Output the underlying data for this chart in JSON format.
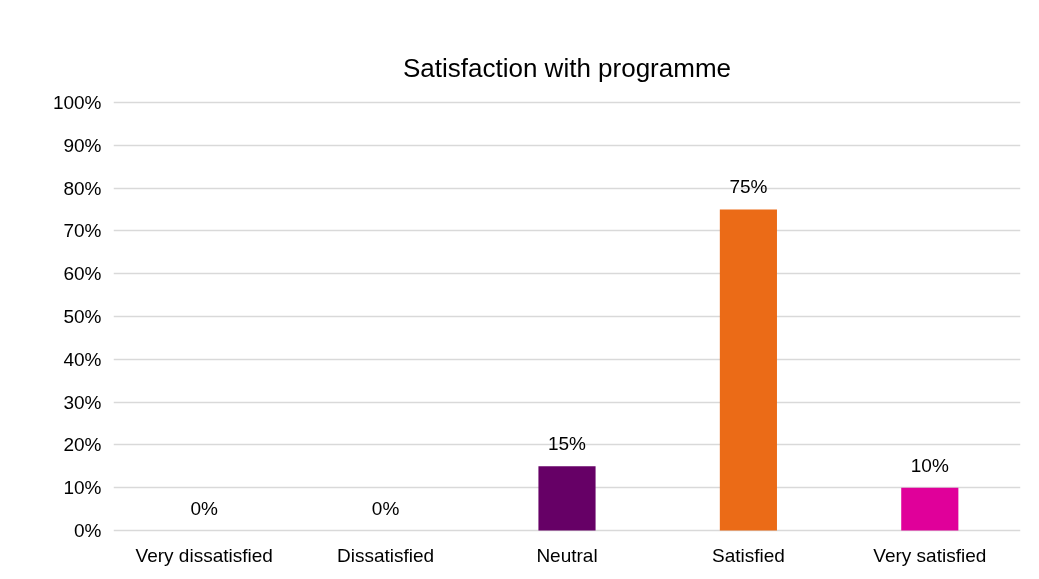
{
  "chart_data": {
    "type": "bar",
    "title": "Satisfaction with programme",
    "categories": [
      "Very dissatisfied",
      "Dissatisfied",
      "Neutral",
      "Satisfied",
      "Very satisfied"
    ],
    "values": [
      0,
      0,
      15,
      75,
      10
    ],
    "colors": [
      null,
      null,
      "#660066",
      "#eb6b17",
      "#e0009a"
    ],
    "value_labels": [
      "0%",
      "0%",
      "15%",
      "75%",
      "10%"
    ],
    "ylim": [
      0,
      100
    ],
    "yticks": [
      {
        "value": 0,
        "label": "0%"
      },
      {
        "value": 10,
        "label": "10%"
      },
      {
        "value": 20,
        "label": "20%"
      },
      {
        "value": 30,
        "label": "30%"
      },
      {
        "value": 40,
        "label": "40%"
      },
      {
        "value": 50,
        "label": "50%"
      },
      {
        "value": 60,
        "label": "60%"
      },
      {
        "value": 70,
        "label": "70%"
      },
      {
        "value": 80,
        "label": "80%"
      },
      {
        "value": 90,
        "label": "90%"
      },
      {
        "value": 100,
        "label": "100%"
      }
    ],
    "grid": "y"
  }
}
